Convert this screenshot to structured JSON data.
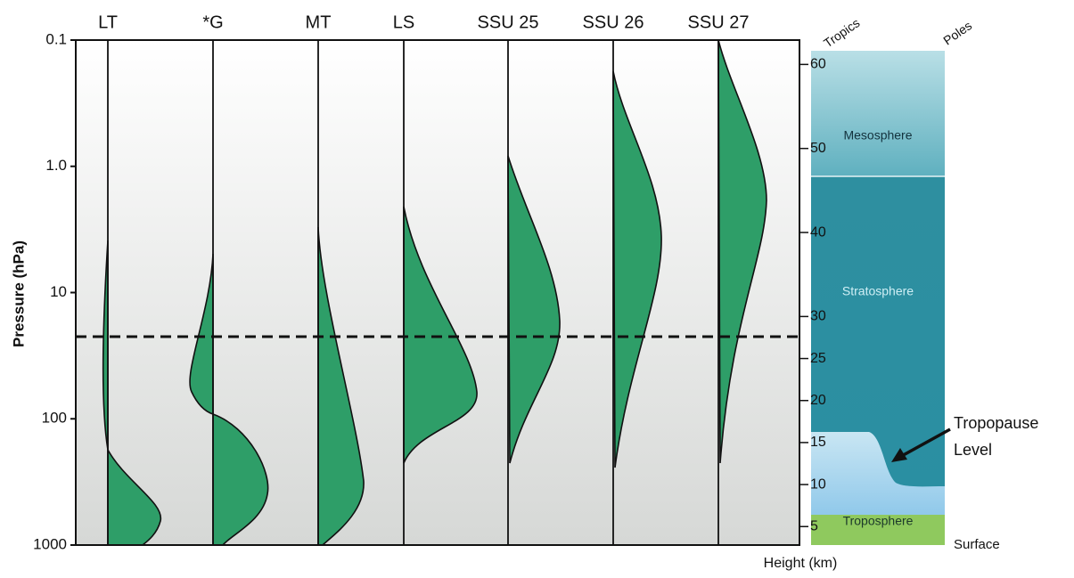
{
  "pressure_axis": {
    "label": "Pressure (hPa)",
    "lim": [
      1000,
      0.1
    ],
    "ticks": [
      0.1,
      {
        "value": 1,
        "label": "1.0"
      },
      10,
      100,
      1000
    ]
  },
  "height_axis": {
    "label": "Height (km)",
    "lim": [
      2.8,
      62.9
    ],
    "ticks": [
      60,
      50,
      40,
      30,
      25,
      20,
      15,
      10,
      5
    ]
  },
  "channels": [
    "LT",
    "*G",
    "MT",
    "LS",
    "SSU 25",
    "SSU 26",
    "SSU 27"
  ],
  "column": {
    "tropics": "Tropics",
    "poles": "Poles",
    "layers": [
      "Mesosphere",
      "Stratosphere",
      "Troposphere"
    ],
    "annotation": [
      "Tropopause",
      "Level"
    ],
    "surface": "Surface"
  }
}
